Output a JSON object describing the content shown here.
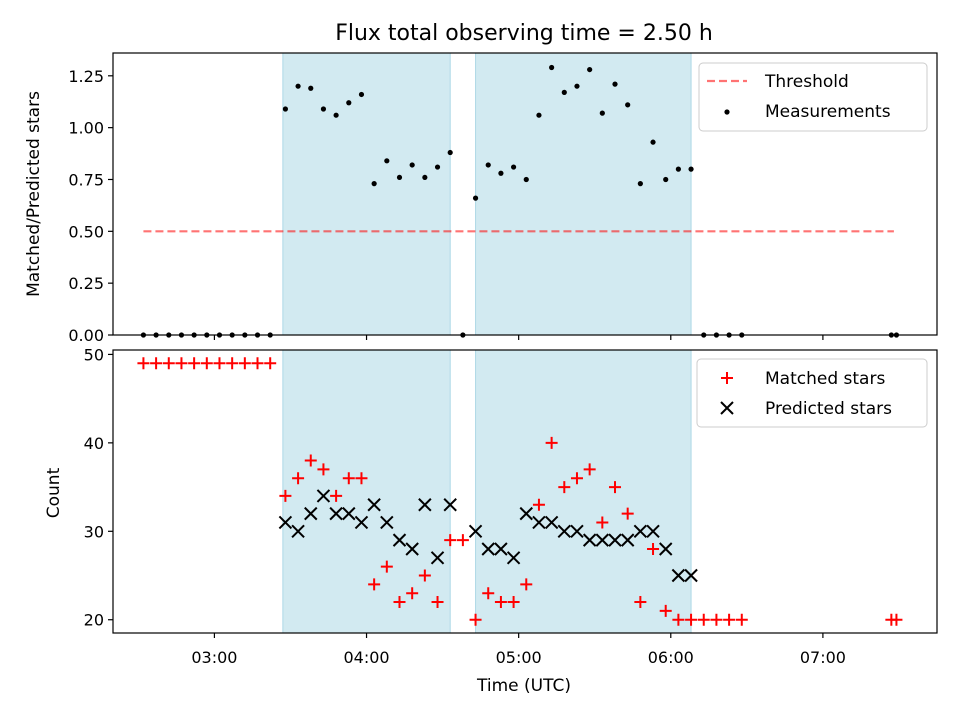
{
  "colors": {
    "shade": "#add8e6",
    "threshold": "#ff0000",
    "measurement": "#000000",
    "matched": "#ff0000",
    "predicted": "#000000"
  },
  "chart_data": [
    {
      "type": "scatter",
      "title": "Flux total observing time = 2.50 h",
      "xlabel": "",
      "ylabel": "Matched/Predicted stars",
      "xlim": [
        "02:20",
        "07:45"
      ],
      "ylim": [
        0,
        1.36
      ],
      "y_ticks": [
        "0.00",
        "0.25",
        "0.50",
        "0.75",
        "1.00",
        "1.25"
      ],
      "shaded_intervals": [
        [
          "03:27",
          "04:33"
        ],
        [
          "04:43",
          "06:08"
        ]
      ],
      "legend": {
        "position": "top-right",
        "entries": [
          "Threshold",
          "Measurements"
        ]
      },
      "threshold": {
        "name": "Threshold",
        "style": "dashed",
        "x_start": "02:32",
        "x_end": "07:28",
        "value": 0.5
      },
      "series": [
        {
          "name": "Measurements",
          "points": [
            [
              "02:32",
              0
            ],
            [
              "02:37",
              0
            ],
            [
              "02:42",
              0
            ],
            [
              "02:47",
              0
            ],
            [
              "02:52",
              0
            ],
            [
              "02:57",
              0
            ],
            [
              "03:02",
              0
            ],
            [
              "03:07",
              0
            ],
            [
              "03:12",
              0
            ],
            [
              "03:17",
              0
            ],
            [
              "03:22",
              0
            ],
            [
              "03:28",
              1.09
            ],
            [
              "03:33",
              1.2
            ],
            [
              "03:38",
              1.19
            ],
            [
              "03:43",
              1.09
            ],
            [
              "03:48",
              1.06
            ],
            [
              "03:53",
              1.12
            ],
            [
              "03:58",
              1.16
            ],
            [
              "04:03",
              0.73
            ],
            [
              "04:08",
              0.84
            ],
            [
              "04:13",
              0.76
            ],
            [
              "04:18",
              0.82
            ],
            [
              "04:23",
              0.76
            ],
            [
              "04:28",
              0.81
            ],
            [
              "04:33",
              0.88
            ],
            [
              "04:38",
              0
            ],
            [
              "04:43",
              0.66
            ],
            [
              "04:48",
              0.82
            ],
            [
              "04:53",
              0.78
            ],
            [
              "04:58",
              0.81
            ],
            [
              "05:03",
              0.75
            ],
            [
              "05:08",
              1.06
            ],
            [
              "05:13",
              1.29
            ],
            [
              "05:18",
              1.17
            ],
            [
              "05:23",
              1.2
            ],
            [
              "05:28",
              1.28
            ],
            [
              "05:33",
              1.07
            ],
            [
              "05:38",
              1.21
            ],
            [
              "05:43",
              1.11
            ],
            [
              "05:48",
              0.73
            ],
            [
              "05:53",
              0.93
            ],
            [
              "05:58",
              0.75
            ],
            [
              "06:03",
              0.8
            ],
            [
              "06:08",
              0.8
            ],
            [
              "06:13",
              0
            ],
            [
              "06:18",
              0
            ],
            [
              "06:23",
              0
            ],
            [
              "06:28",
              0
            ],
            [
              "07:27",
              0
            ],
            [
              "07:29",
              0
            ]
          ]
        }
      ]
    },
    {
      "type": "scatter",
      "title": "",
      "xlabel": "Time (UTC)",
      "ylabel": "Count",
      "xlim": [
        "02:20",
        "07:45"
      ],
      "ylim": [
        18.5,
        50.5
      ],
      "y_ticks": [
        "20",
        "30",
        "40",
        "50"
      ],
      "x_ticks": [
        "03:00",
        "04:00",
        "05:00",
        "06:00",
        "07:00"
      ],
      "shaded_intervals": [
        [
          "03:27",
          "04:33"
        ],
        [
          "04:43",
          "06:08"
        ]
      ],
      "legend": {
        "position": "top-right",
        "entries": [
          "Matched stars",
          "Predicted stars"
        ]
      },
      "series": [
        {
          "name": "Matched stars",
          "marker": "+",
          "points": [
            [
              "02:32",
              49
            ],
            [
              "02:37",
              49
            ],
            [
              "02:42",
              49
            ],
            [
              "02:47",
              49
            ],
            [
              "02:52",
              49
            ],
            [
              "02:57",
              49
            ],
            [
              "03:02",
              49
            ],
            [
              "03:07",
              49
            ],
            [
              "03:12",
              49
            ],
            [
              "03:17",
              49
            ],
            [
              "03:22",
              49
            ],
            [
              "03:28",
              34
            ],
            [
              "03:33",
              36
            ],
            [
              "03:38",
              38
            ],
            [
              "03:43",
              37
            ],
            [
              "03:48",
              34
            ],
            [
              "03:53",
              36
            ],
            [
              "03:58",
              36
            ],
            [
              "04:03",
              24
            ],
            [
              "04:08",
              26
            ],
            [
              "04:13",
              22
            ],
            [
              "04:18",
              23
            ],
            [
              "04:23",
              25
            ],
            [
              "04:28",
              22
            ],
            [
              "04:33",
              29
            ],
            [
              "04:38",
              29
            ],
            [
              "04:43",
              20
            ],
            [
              "04:48",
              23
            ],
            [
              "04:53",
              22
            ],
            [
              "04:58",
              22
            ],
            [
              "05:03",
              24
            ],
            [
              "05:08",
              33
            ],
            [
              "05:13",
              40
            ],
            [
              "05:18",
              35
            ],
            [
              "05:23",
              36
            ],
            [
              "05:28",
              37
            ],
            [
              "05:33",
              31
            ],
            [
              "05:38",
              35
            ],
            [
              "05:43",
              32
            ],
            [
              "05:48",
              22
            ],
            [
              "05:53",
              28
            ],
            [
              "05:58",
              21
            ],
            [
              "06:03",
              20
            ],
            [
              "06:08",
              20
            ],
            [
              "06:13",
              20
            ],
            [
              "06:18",
              20
            ],
            [
              "06:23",
              20
            ],
            [
              "06:28",
              20
            ],
            [
              "07:27",
              20
            ],
            [
              "07:29",
              20
            ]
          ]
        },
        {
          "name": "Predicted stars",
          "marker": "x",
          "points": [
            [
              "03:28",
              31
            ],
            [
              "03:33",
              30
            ],
            [
              "03:38",
              32
            ],
            [
              "03:43",
              34
            ],
            [
              "03:48",
              32
            ],
            [
              "03:53",
              32
            ],
            [
              "03:58",
              31
            ],
            [
              "04:03",
              33
            ],
            [
              "04:08",
              31
            ],
            [
              "04:13",
              29
            ],
            [
              "04:18",
              28
            ],
            [
              "04:23",
              33
            ],
            [
              "04:28",
              27
            ],
            [
              "04:33",
              33
            ],
            [
              "04:43",
              30
            ],
            [
              "04:48",
              28
            ],
            [
              "04:53",
              28
            ],
            [
              "04:58",
              27
            ],
            [
              "05:03",
              32
            ],
            [
              "05:08",
              31
            ],
            [
              "05:13",
              31
            ],
            [
              "05:18",
              30
            ],
            [
              "05:23",
              30
            ],
            [
              "05:28",
              29
            ],
            [
              "05:33",
              29
            ],
            [
              "05:38",
              29
            ],
            [
              "05:43",
              29
            ],
            [
              "05:48",
              30
            ],
            [
              "05:53",
              30
            ],
            [
              "05:58",
              28
            ],
            [
              "06:03",
              25
            ],
            [
              "06:08",
              25
            ]
          ]
        }
      ]
    }
  ]
}
